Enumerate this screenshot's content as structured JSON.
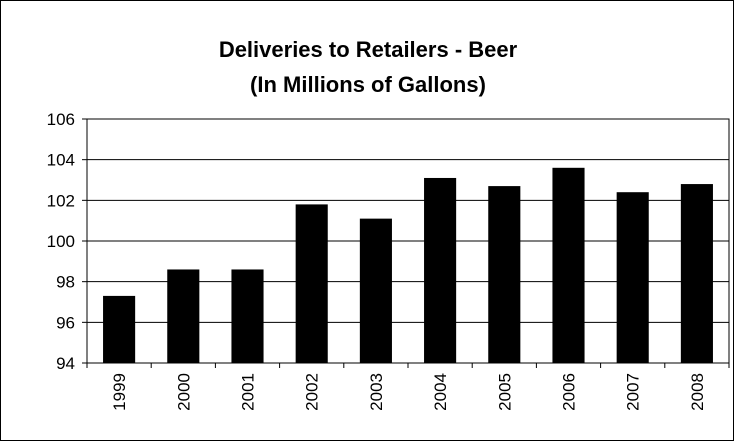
{
  "chart_data": {
    "type": "bar",
    "title": "Deliveries to Retailers - Beer",
    "subtitle": "(In Millions of Gallons)",
    "xlabel": "",
    "ylabel": "",
    "categories": [
      "1999",
      "2000",
      "2001",
      "2002",
      "2003",
      "2004",
      "2005",
      "2006",
      "2007",
      "2008"
    ],
    "values": [
      97.3,
      98.6,
      98.6,
      101.8,
      101.1,
      103.1,
      102.7,
      103.6,
      102.4,
      102.8
    ],
    "ylim": [
      94,
      106
    ],
    "yticks": [
      "94",
      "96",
      "98",
      "100",
      "102",
      "104",
      "106"
    ],
    "grid": true,
    "legend": "none",
    "bar_color": "#000000"
  }
}
